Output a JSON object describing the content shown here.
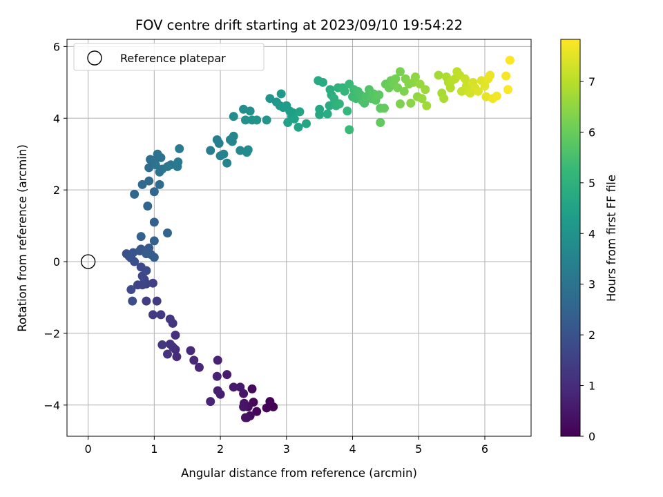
{
  "chart_data": {
    "type": "scatter",
    "title": "FOV centre drift starting at 2023/09/10 19:54:22",
    "xlabel": "Angular distance from reference (arcmin)",
    "ylabel": "Rotation from reference (arcmin)",
    "xlim": [
      -0.32,
      6.7
    ],
    "ylim": [
      -4.87,
      6.2
    ],
    "xticks": [
      0,
      1,
      2,
      3,
      4,
      5,
      6
    ],
    "yticks": [
      -4,
      -2,
      0,
      2,
      4,
      6
    ],
    "grid": true,
    "legend": {
      "position": "upper left",
      "entries": [
        "Reference platepar"
      ]
    },
    "reference_point": {
      "x": 0,
      "y": 0,
      "label": "Reference platepar"
    },
    "colorbar": {
      "label": "Hours from first FF file",
      "colormap": "viridis",
      "range": [
        0,
        7.83
      ],
      "ticks": [
        0,
        1,
        2,
        3,
        4,
        5,
        6,
        7
      ]
    },
    "colors": {
      "viridis": [
        "#440154",
        "#482878",
        "#3e4989",
        "#31688e",
        "#26828e",
        "#1f9e89",
        "#35b779",
        "#6ece58",
        "#b5de2b",
        "#fde725"
      ],
      "grid": "#b0b0b0"
    },
    "series": [
      {
        "values": [
          [
            2.8,
            -4.05
          ],
          [
            2.75,
            -3.9
          ],
          [
            2.7,
            -4.08
          ],
          [
            2.55,
            -4.18
          ],
          [
            2.5,
            -3.92
          ],
          [
            2.48,
            -3.55
          ],
          [
            2.45,
            -4.3
          ],
          [
            2.42,
            -4.05
          ],
          [
            2.4,
            -4.35
          ],
          [
            2.38,
            -4.35
          ],
          [
            2.36,
            -3.95
          ],
          [
            2.35,
            -4.05
          ],
          [
            2.35,
            -3.68
          ],
          [
            2.3,
            -3.5
          ],
          [
            2.2,
            -3.5
          ],
          [
            2.1,
            -3.15
          ],
          [
            2.0,
            -3.7
          ],
          [
            1.96,
            -3.6
          ],
          [
            1.95,
            -3.2
          ],
          [
            1.96,
            -2.75
          ],
          [
            1.85,
            -3.9
          ],
          [
            1.68,
            -2.95
          ],
          [
            1.6,
            -2.75
          ],
          [
            1.55,
            -2.48
          ],
          [
            1.34,
            -2.65
          ],
          [
            1.32,
            -2.45
          ],
          [
            1.32,
            -2.05
          ],
          [
            1.28,
            -2.38
          ],
          [
            1.24,
            -2.3
          ],
          [
            1.2,
            -2.58
          ],
          [
            1.28,
            -1.72
          ],
          [
            1.24,
            -1.6
          ],
          [
            1.12,
            -2.32
          ],
          [
            1.1,
            -1.48
          ],
          [
            1.04,
            -1.1
          ],
          [
            0.98,
            -1.48
          ],
          [
            0.88,
            -1.1
          ],
          [
            0.98,
            -0.6
          ],
          [
            0.88,
            -0.62
          ],
          [
            0.82,
            -0.65
          ],
          [
            0.75,
            -0.65
          ],
          [
            0.85,
            -0.5
          ],
          [
            0.82,
            -0.4
          ],
          [
            0.8,
            -0.15
          ],
          [
            0.88,
            -0.25
          ],
          [
            0.65,
            -0.78
          ],
          [
            0.67,
            -1.1
          ],
          [
            0.65,
            0.1
          ],
          [
            0.7,
            0.0
          ],
          [
            0.58,
            0.22
          ],
          [
            0.62,
            0.15
          ],
          [
            0.68,
            0.25
          ],
          [
            0.78,
            0.3
          ],
          [
            0.8,
            0.35
          ],
          [
            0.85,
            0.3
          ],
          [
            0.92,
            0.38
          ],
          [
            0.95,
            0.2
          ],
          [
            0.88,
            0.22
          ],
          [
            1.0,
            0.12
          ],
          [
            1.0,
            0.58
          ],
          [
            1.0,
            1.1
          ],
          [
            0.8,
            0.7
          ],
          [
            1.2,
            0.8
          ],
          [
            0.9,
            1.55
          ],
          [
            1.0,
            1.95
          ],
          [
            0.7,
            1.88
          ],
          [
            0.82,
            2.15
          ],
          [
            0.92,
            2.25
          ],
          [
            1.08,
            2.15
          ],
          [
            0.92,
            2.62
          ],
          [
            0.94,
            2.85
          ],
          [
            1.0,
            2.82
          ],
          [
            1.05,
            3.0
          ],
          [
            1.1,
            2.9
          ],
          [
            1.02,
            2.7
          ],
          [
            1.08,
            2.5
          ],
          [
            1.12,
            2.58
          ],
          [
            1.2,
            2.65
          ],
          [
            1.25,
            2.7
          ],
          [
            1.35,
            2.65
          ],
          [
            1.36,
            2.78
          ],
          [
            1.38,
            3.15
          ],
          [
            1.85,
            3.1
          ],
          [
            1.95,
            3.4
          ],
          [
            1.98,
            3.3
          ],
          [
            2.0,
            2.95
          ],
          [
            2.05,
            3.0
          ],
          [
            2.1,
            2.75
          ],
          [
            2.15,
            3.4
          ],
          [
            2.2,
            3.5
          ],
          [
            2.18,
            3.35
          ],
          [
            2.3,
            3.1
          ],
          [
            2.4,
            3.05
          ],
          [
            2.42,
            3.12
          ],
          [
            2.2,
            4.05
          ],
          [
            2.35,
            4.25
          ],
          [
            2.45,
            4.2
          ],
          [
            2.38,
            3.95
          ],
          [
            2.48,
            3.95
          ],
          [
            2.55,
            3.95
          ],
          [
            2.7,
            3.95
          ],
          [
            2.75,
            4.55
          ],
          [
            2.85,
            4.45
          ],
          [
            2.9,
            4.35
          ],
          [
            2.92,
            4.68
          ],
          [
            2.95,
            4.3
          ],
          [
            3.0,
            4.35
          ],
          [
            3.05,
            4.2
          ],
          [
            3.08,
            4.05
          ],
          [
            3.1,
            4.15
          ],
          [
            3.02,
            3.88
          ],
          [
            3.12,
            3.98
          ],
          [
            3.18,
            3.75
          ],
          [
            3.2,
            4.18
          ],
          [
            3.3,
            3.85
          ],
          [
            3.5,
            4.25
          ],
          [
            3.5,
            4.1
          ],
          [
            3.48,
            5.05
          ],
          [
            3.55,
            5.0
          ],
          [
            3.62,
            4.12
          ],
          [
            3.65,
            4.35
          ],
          [
            3.66,
            4.8
          ],
          [
            3.68,
            4.65
          ],
          [
            3.72,
            4.55
          ],
          [
            3.75,
            4.35
          ],
          [
            3.78,
            4.85
          ],
          [
            3.8,
            4.4
          ],
          [
            3.85,
            4.85
          ],
          [
            3.88,
            4.75
          ],
          [
            3.92,
            4.2
          ],
          [
            3.95,
            4.95
          ],
          [
            3.95,
            3.68
          ],
          [
            4.0,
            4.6
          ],
          [
            4.02,
            4.8
          ],
          [
            4.05,
            4.55
          ],
          [
            4.08,
            4.75
          ],
          [
            4.12,
            4.65
          ],
          [
            4.15,
            4.48
          ],
          [
            4.18,
            4.42
          ],
          [
            4.2,
            4.6
          ],
          [
            4.25,
            4.8
          ],
          [
            4.28,
            4.55
          ],
          [
            4.32,
            4.68
          ],
          [
            4.35,
            4.5
          ],
          [
            4.4,
            4.65
          ],
          [
            4.42,
            4.28
          ],
          [
            4.42,
            3.88
          ],
          [
            4.48,
            4.28
          ],
          [
            4.5,
            4.95
          ],
          [
            4.55,
            4.85
          ],
          [
            4.58,
            5.05
          ],
          [
            4.62,
            4.95
          ],
          [
            4.65,
            5.1
          ],
          [
            4.68,
            4.85
          ],
          [
            4.72,
            5.3
          ],
          [
            4.72,
            4.4
          ],
          [
            4.78,
            4.75
          ],
          [
            4.8,
            5.1
          ],
          [
            4.85,
            4.95
          ],
          [
            4.88,
            4.42
          ],
          [
            4.92,
            5.0
          ],
          [
            4.95,
            5.15
          ],
          [
            4.98,
            4.6
          ],
          [
            5.02,
            4.95
          ],
          [
            5.05,
            4.55
          ],
          [
            5.1,
            4.8
          ],
          [
            5.12,
            4.35
          ],
          [
            5.3,
            5.2
          ],
          [
            5.35,
            4.7
          ],
          [
            5.38,
            4.55
          ],
          [
            5.42,
            5.15
          ],
          [
            5.45,
            5.0
          ],
          [
            5.48,
            4.85
          ],
          [
            5.5,
            5.05
          ],
          [
            5.55,
            5.1
          ],
          [
            5.58,
            5.3
          ],
          [
            5.62,
            5.2
          ],
          [
            5.65,
            4.75
          ],
          [
            5.7,
            5.1
          ],
          [
            5.72,
            4.9
          ],
          [
            5.75,
            4.75
          ],
          [
            5.78,
            4.7
          ],
          [
            5.82,
            5.0
          ],
          [
            5.85,
            4.85
          ],
          [
            5.9,
            4.75
          ],
          [
            5.95,
            5.05
          ],
          [
            6.0,
            4.9
          ],
          [
            6.02,
            4.6
          ],
          [
            6.05,
            5.1
          ],
          [
            6.08,
            5.2
          ],
          [
            6.12,
            4.55
          ],
          [
            6.18,
            4.62
          ],
          [
            6.32,
            5.18
          ],
          [
            6.35,
            4.8
          ],
          [
            6.38,
            5.62
          ]
        ]
      }
    ]
  }
}
